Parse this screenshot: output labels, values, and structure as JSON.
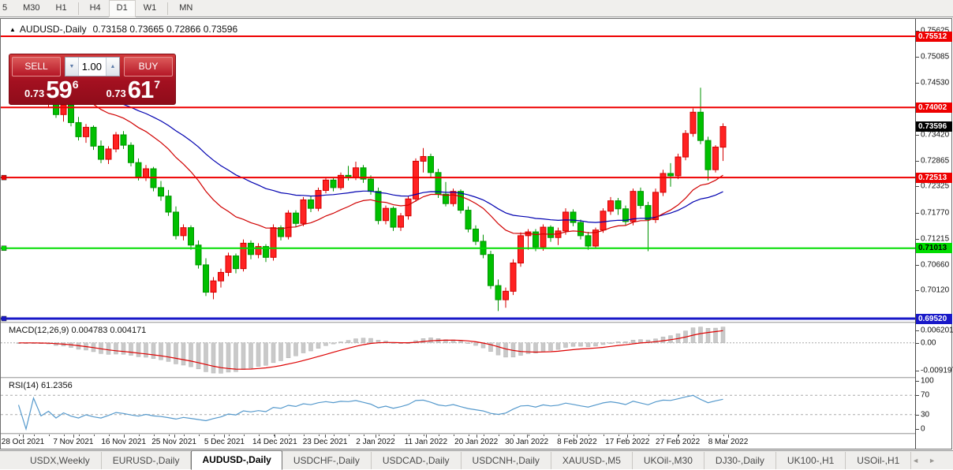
{
  "toolbar": {
    "timeframes": [
      "5",
      "M30",
      "H1",
      "H4",
      "D1",
      "W1",
      "MN"
    ],
    "active": "D1",
    "separators_after": [
      3,
      6
    ]
  },
  "chart": {
    "collapse_arrow": "▲",
    "title": "AUDUSD-,Daily",
    "ohlc": "0.73158 0.73665 0.72866 0.73596"
  },
  "trade_panel": {
    "sell_label": "SELL",
    "buy_label": "BUY",
    "volume": "1.00",
    "spin_down": "▼",
    "spin_up": "▲",
    "sell_price_small": "0.73",
    "sell_price_big": "59",
    "sell_price_sup": "6",
    "buy_price_small": "0.73",
    "buy_price_big": "61",
    "buy_price_sup": "7"
  },
  "macd_panel": {
    "label": "MACD(12,26,9)",
    "values": "0.004783 0.004171",
    "scale_top": "0.006201",
    "scale_zero": "0.00",
    "scale_bottom": "-0.009197"
  },
  "rsi_panel": {
    "label": "RSI(14)",
    "value": "61.2356",
    "scale_labels": [
      100,
      70,
      30,
      0
    ]
  },
  "tabs": {
    "items": [
      "USDX,Weekly",
      "EURUSD-,Daily",
      "AUDUSD-,Daily",
      "USDCHF-,Daily",
      "USDCAD-,Daily",
      "USDCNH-,Daily",
      "XAUUSD-,M5",
      "UKOil-,M30",
      "DJ30-,Daily",
      "UK100-,H1",
      "USOil-,H1"
    ],
    "active_index": 2,
    "scroll_left": "◄",
    "scroll_right": "►"
  },
  "chart_data": {
    "type": "candlestick",
    "symbol": "AUDUSD-",
    "timeframe": "Daily",
    "current_ohlc": {
      "open": 0.73158,
      "high": 0.73665,
      "low": 0.72866,
      "close": 0.73596
    },
    "ylim": {
      "max": 0.7588,
      "min": 0.69453
    },
    "y_ticks": [
      0.75625,
      0.75085,
      0.7453,
      0.73975,
      0.7342,
      0.72865,
      0.72325,
      0.7177,
      0.71215,
      0.7066,
      0.7012
    ],
    "current_price": 0.73596,
    "levels": [
      {
        "value": 0.75512,
        "label": "0.75512",
        "color": "#ee0000",
        "width": 2,
        "marker": false,
        "text": "#ffffff"
      },
      {
        "value": 0.74002,
        "label": "0.74002",
        "color": "#ee0000",
        "width": 2,
        "marker": false,
        "text": "#ffffff"
      },
      {
        "value": 0.72513,
        "label": "0.72513",
        "color": "#ee0000",
        "width": 2,
        "marker": true,
        "text": "#ffffff"
      },
      {
        "value": 0.71013,
        "label": "0.71013",
        "color": "#00dd00",
        "width": 2,
        "marker": true,
        "text": "#000000"
      },
      {
        "value": 0.6952,
        "label": "0.69520",
        "color": "#1818c8",
        "width": 3,
        "marker": true,
        "text": "#ffffff"
      }
    ],
    "colors": {
      "bull_fill": "#ff2222",
      "bull_border": "#d40000",
      "bear_fill": "#00c000",
      "bear_border": "#009300",
      "ma_fast": "#d00000",
      "ma_slow": "#0000b0",
      "macd_hist": "#c9c9c9",
      "macd_hist_border": "#b2b2b2",
      "macd_signal": "#dd0000",
      "rsi_line": "#5599cc",
      "grid_dash": "#aaaaaa",
      "badge_current_bg": "#000000"
    },
    "ma_fast_period": 20,
    "ma_slow_period": 40,
    "macd_params": [
      12,
      26,
      9
    ],
    "rsi_period": 14,
    "rsi_guides": [
      70,
      30
    ],
    "x_labels": [
      "28 Oct 2021",
      "7 Nov 2021",
      "16 Nov 2021",
      "25 Nov 2021",
      "5 Dec 2021",
      "14 Dec 2021",
      "23 Dec 2021",
      "2 Jan 2022",
      "11 Jan 2022",
      "20 Jan 2022",
      "30 Jan 2022",
      "8 Feb 2022",
      "17 Feb 2022",
      "27 Feb 2022",
      "8 Mar 2022"
    ],
    "candles": [
      [
        0.7435,
        0.7458,
        0.7428,
        0.7452
      ],
      [
        0.7452,
        0.747,
        0.7438,
        0.7442
      ],
      [
        0.7442,
        0.7465,
        0.743,
        0.746
      ],
      [
        0.746,
        0.7466,
        0.7416,
        0.7422
      ],
      [
        0.7422,
        0.7438,
        0.74,
        0.7432
      ],
      [
        0.7432,
        0.744,
        0.7378,
        0.7385
      ],
      [
        0.7385,
        0.7412,
        0.737,
        0.7405
      ],
      [
        0.7405,
        0.741,
        0.736,
        0.7368
      ],
      [
        0.7368,
        0.738,
        0.733,
        0.7338
      ],
      [
        0.7338,
        0.7365,
        0.7325,
        0.7358
      ],
      [
        0.7358,
        0.7362,
        0.731,
        0.7318
      ],
      [
        0.7318,
        0.733,
        0.7282,
        0.729
      ],
      [
        0.729,
        0.7318,
        0.728,
        0.7312
      ],
      [
        0.7312,
        0.7348,
        0.7305,
        0.7342
      ],
      [
        0.7342,
        0.735,
        0.7312,
        0.732
      ],
      [
        0.732,
        0.7326,
        0.7275,
        0.7283
      ],
      [
        0.7283,
        0.7292,
        0.7245,
        0.7252
      ],
      [
        0.7252,
        0.7278,
        0.7244,
        0.727
      ],
      [
        0.727,
        0.7274,
        0.7222,
        0.723
      ],
      [
        0.723,
        0.7244,
        0.7202,
        0.7212
      ],
      [
        0.7212,
        0.7225,
        0.717,
        0.7178
      ],
      [
        0.7178,
        0.719,
        0.712,
        0.7128
      ],
      [
        0.7128,
        0.7152,
        0.7118,
        0.7145
      ],
      [
        0.7145,
        0.715,
        0.7098,
        0.7108
      ],
      [
        0.7108,
        0.7118,
        0.7058,
        0.7066
      ],
      [
        0.7066,
        0.708,
        0.7,
        0.7008
      ],
      [
        0.7008,
        0.704,
        0.6993,
        0.7032
      ],
      [
        0.7032,
        0.7058,
        0.7018,
        0.705
      ],
      [
        0.705,
        0.7092,
        0.7042,
        0.7085
      ],
      [
        0.7085,
        0.709,
        0.7048,
        0.7058
      ],
      [
        0.7058,
        0.712,
        0.7052,
        0.7112
      ],
      [
        0.7112,
        0.7118,
        0.7078,
        0.7088
      ],
      [
        0.7088,
        0.7112,
        0.708,
        0.7105
      ],
      [
        0.7105,
        0.711,
        0.7072,
        0.7082
      ],
      [
        0.7082,
        0.7152,
        0.7075,
        0.7145
      ],
      [
        0.7145,
        0.715,
        0.7118,
        0.7126
      ],
      [
        0.7126,
        0.7182,
        0.712,
        0.7176
      ],
      [
        0.7176,
        0.7182,
        0.7146,
        0.7154
      ],
      [
        0.7154,
        0.721,
        0.7148,
        0.7204
      ],
      [
        0.7204,
        0.7212,
        0.7178,
        0.7186
      ],
      [
        0.7186,
        0.723,
        0.718,
        0.7224
      ],
      [
        0.7224,
        0.7252,
        0.7218,
        0.7246
      ],
      [
        0.7246,
        0.725,
        0.7222,
        0.723
      ],
      [
        0.723,
        0.7262,
        0.7225,
        0.7256
      ],
      [
        0.7256,
        0.7276,
        0.7245,
        0.7252
      ],
      [
        0.7252,
        0.7285,
        0.7246,
        0.7272
      ],
      [
        0.7272,
        0.7278,
        0.724,
        0.7248
      ],
      [
        0.7248,
        0.7256,
        0.7215,
        0.7222
      ],
      [
        0.7222,
        0.723,
        0.7152,
        0.716
      ],
      [
        0.716,
        0.7192,
        0.7152,
        0.7186
      ],
      [
        0.7186,
        0.719,
        0.7138,
        0.7146
      ],
      [
        0.7146,
        0.7176,
        0.7138,
        0.717
      ],
      [
        0.717,
        0.7212,
        0.7162,
        0.7206
      ],
      [
        0.7206,
        0.7292,
        0.72,
        0.7286
      ],
      [
        0.7286,
        0.7314,
        0.7262,
        0.7296
      ],
      [
        0.7296,
        0.7302,
        0.7252,
        0.7262
      ],
      [
        0.7262,
        0.727,
        0.7208,
        0.7216
      ],
      [
        0.7216,
        0.7242,
        0.719,
        0.7196
      ],
      [
        0.7196,
        0.7228,
        0.719,
        0.7222
      ],
      [
        0.7222,
        0.7226,
        0.7175,
        0.7182
      ],
      [
        0.7182,
        0.719,
        0.7135,
        0.7142
      ],
      [
        0.7142,
        0.715,
        0.7108,
        0.7116
      ],
      [
        0.7116,
        0.713,
        0.708,
        0.7088
      ],
      [
        0.7088,
        0.7096,
        0.7015,
        0.7022
      ],
      [
        0.7022,
        0.7035,
        0.6968,
        0.6992
      ],
      [
        0.6992,
        0.7018,
        0.6975,
        0.701
      ],
      [
        0.701,
        0.7078,
        0.7002,
        0.707
      ],
      [
        0.707,
        0.7135,
        0.7062,
        0.7128
      ],
      [
        0.7128,
        0.7142,
        0.7098,
        0.7136
      ],
      [
        0.7136,
        0.7142,
        0.7095,
        0.7104
      ],
      [
        0.7104,
        0.7152,
        0.7096,
        0.7146
      ],
      [
        0.7146,
        0.715,
        0.7115,
        0.7124
      ],
      [
        0.7124,
        0.7145,
        0.7108,
        0.7138
      ],
      [
        0.7138,
        0.7186,
        0.713,
        0.7178
      ],
      [
        0.7178,
        0.7184,
        0.7148,
        0.7156
      ],
      [
        0.7156,
        0.7162,
        0.712,
        0.7128
      ],
      [
        0.7128,
        0.7136,
        0.7098,
        0.7106
      ],
      [
        0.7106,
        0.7145,
        0.71,
        0.714
      ],
      [
        0.714,
        0.7186,
        0.7134,
        0.718
      ],
      [
        0.718,
        0.721,
        0.7172,
        0.7202
      ],
      [
        0.7202,
        0.7208,
        0.7172,
        0.7185
      ],
      [
        0.7185,
        0.7192,
        0.715,
        0.7158
      ],
      [
        0.7158,
        0.7228,
        0.715,
        0.7222
      ],
      [
        0.7222,
        0.723,
        0.7185,
        0.7192
      ],
      [
        0.7192,
        0.72,
        0.7095,
        0.7162
      ],
      [
        0.7162,
        0.7228,
        0.7155,
        0.722
      ],
      [
        0.722,
        0.7268,
        0.7212,
        0.726
      ],
      [
        0.726,
        0.7282,
        0.7232,
        0.7255
      ],
      [
        0.7255,
        0.7302,
        0.7248,
        0.7295
      ],
      [
        0.7295,
        0.7352,
        0.7288,
        0.7345
      ],
      [
        0.7345,
        0.7398,
        0.7338,
        0.739
      ],
      [
        0.739,
        0.7442,
        0.7322,
        0.733
      ],
      [
        0.733,
        0.7338,
        0.7245,
        0.7268
      ],
      [
        0.7268,
        0.732,
        0.7262,
        0.7316
      ],
      [
        0.73158,
        0.73665,
        0.72866,
        0.73596
      ]
    ]
  }
}
